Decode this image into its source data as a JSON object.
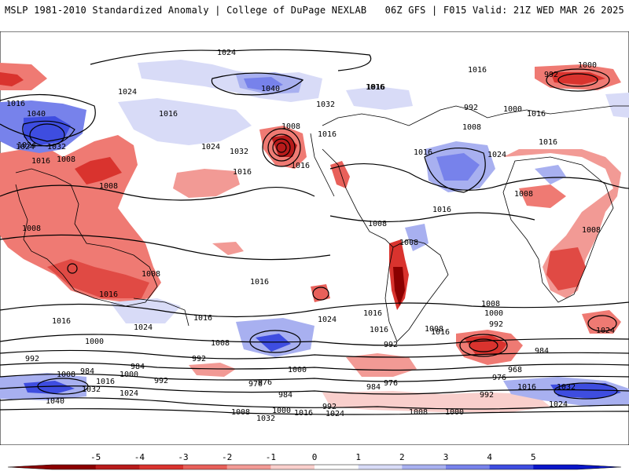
{
  "header": {
    "title": "MSLP 1981-2010 Standardized Anomaly | College of DuPage NEXLAB",
    "run": "06Z GFS | F015 Valid: 21Z WED MAR 26 2025"
  },
  "colorbar": {
    "ticks": [
      "-5",
      "-4",
      "-3",
      "-2",
      "-1",
      "0",
      "1",
      "2",
      "3",
      "4",
      "5"
    ],
    "colors": [
      "#8b0000",
      "#b81b1b",
      "#d9332e",
      "#e8605a",
      "#f29a95",
      "#f9cfcc",
      "#ffffff",
      "#d8dbf7",
      "#a8b0f0",
      "#7782eb",
      "#3e4de0",
      "#0a16c8"
    ]
  },
  "isobar_labels": [
    {
      "t": "1024"
    },
    {
      "t": "1040"
    },
    {
      "t": "1016"
    },
    {
      "t": "1016"
    },
    {
      "t": "1032"
    },
    {
      "t": "1024"
    },
    {
      "t": "1000"
    },
    {
      "t": "992"
    },
    {
      "t": "1016"
    },
    {
      "t": "1024"
    },
    {
      "t": "1040"
    },
    {
      "t": "1024"
    },
    {
      "t": "1032"
    },
    {
      "t": "1016"
    },
    {
      "t": "1008"
    },
    {
      "t": "1024"
    },
    {
      "t": "1032"
    },
    {
      "t": "1016"
    },
    {
      "t": "1016"
    },
    {
      "t": "1016"
    },
    {
      "t": "992"
    },
    {
      "t": "1000"
    },
    {
      "t": "1016"
    },
    {
      "t": "1008"
    },
    {
      "t": "1016"
    },
    {
      "t": "1016"
    },
    {
      "t": "1024"
    },
    {
      "t": "1016"
    },
    {
      "t": "1008"
    },
    {
      "t": "1008"
    },
    {
      "t": "1008"
    },
    {
      "t": "1016"
    },
    {
      "t": "1008"
    },
    {
      "t": "1008"
    },
    {
      "t": "1008"
    },
    {
      "t": "1016"
    },
    {
      "t": "1008"
    },
    {
      "t": "1008"
    },
    {
      "t": "1016"
    },
    {
      "t": "1024"
    },
    {
      "t": "1016"
    },
    {
      "t": "1016"
    },
    {
      "t": "1024"
    },
    {
      "t": "1016"
    },
    {
      "t": "1008"
    },
    {
      "t": "1000"
    },
    {
      "t": "992"
    },
    {
      "t": "1016"
    },
    {
      "t": "1008"
    },
    {
      "t": "992"
    },
    {
      "t": "984"
    },
    {
      "t": "968"
    },
    {
      "t": "976"
    },
    {
      "t": "1000"
    },
    {
      "t": "992"
    },
    {
      "t": "1000"
    },
    {
      "t": "1008"
    },
    {
      "t": "992"
    },
    {
      "t": "984"
    },
    {
      "t": "1008"
    },
    {
      "t": "984"
    },
    {
      "t": "1000"
    },
    {
      "t": "992"
    },
    {
      "t": "1016"
    },
    {
      "t": "1032"
    },
    {
      "t": "1024"
    },
    {
      "t": "1040"
    },
    {
      "t": "976"
    },
    {
      "t": "984"
    },
    {
      "t": "984"
    },
    {
      "t": "976"
    },
    {
      "t": "1000"
    },
    {
      "t": "1008"
    },
    {
      "t": "1016"
    },
    {
      "t": "1024"
    },
    {
      "t": "992"
    },
    {
      "t": "1016"
    },
    {
      "t": "1032"
    },
    {
      "t": "1024"
    },
    {
      "t": "992"
    },
    {
      "t": "976"
    },
    {
      "t": "1008"
    },
    {
      "t": "1000"
    },
    {
      "t": "1032"
    },
    {
      "t": "1016"
    },
    {
      "t": "1024"
    },
    {
      "t": "1016"
    }
  ]
}
